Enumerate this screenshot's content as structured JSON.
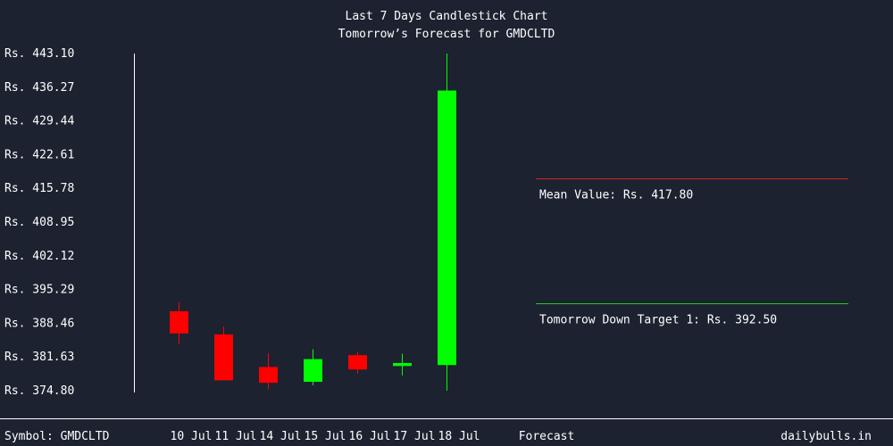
{
  "chart_data": {
    "type": "candlestick",
    "title": "Last 7 Days Candlestick Chart",
    "subtitle": "Tomorrow’s Forecast for GMDCLTD",
    "y_ticks": [
      "Rs. 443.10",
      "Rs. 436.27",
      "Rs. 429.44",
      "Rs. 422.61",
      "Rs. 415.78",
      "Rs. 408.95",
      "Rs. 402.12",
      "Rs. 395.29",
      "Rs. 388.46",
      "Rs. 381.63",
      "Rs. 374.80"
    ],
    "ylim": [
      374.8,
      443.1
    ],
    "categories": [
      "10 Jul",
      "11 Jul",
      "14 Jul",
      "15 Jul",
      "16 Jul",
      "17 Jul",
      "18 Jul"
    ],
    "candles": [
      {
        "date": "10 Jul",
        "open": 390.9,
        "close": 386.4,
        "high": 392.7,
        "low": 384.3,
        "direction": "down"
      },
      {
        "date": "11 Jul",
        "open": 386.2,
        "close": 376.9,
        "high": 387.8,
        "low": 376.9,
        "direction": "down"
      },
      {
        "date": "14 Jul",
        "open": 379.6,
        "close": 376.4,
        "high": 382.4,
        "low": 375.1,
        "direction": "down"
      },
      {
        "date": "15 Jul",
        "open": 376.6,
        "close": 381.2,
        "high": 383.2,
        "low": 375.9,
        "direction": "up"
      },
      {
        "date": "16 Jul",
        "open": 382.0,
        "close": 379.1,
        "high": 382.7,
        "low": 378.3,
        "direction": "down"
      },
      {
        "date": "17 Jul",
        "open": 379.8,
        "close": 380.4,
        "high": 382.3,
        "low": 377.9,
        "direction": "up"
      },
      {
        "date": "18 Jul",
        "open": 380.0,
        "close": 435.6,
        "high": 443.1,
        "low": 374.8,
        "direction": "up"
      }
    ],
    "forecast_label": "Forecast",
    "forecast_lines": [
      {
        "label": "Mean Value: Rs. 417.80",
        "value": 417.8,
        "color": "#cc2222"
      },
      {
        "label": "Tomorrow Down Target 1: Rs. 392.50",
        "value": 392.5,
        "color": "#22cc22"
      }
    ],
    "colors": {
      "up": "#00ff00",
      "down": "#ff0000",
      "background": "#1c2230",
      "text": "#ffffff"
    }
  },
  "footer": {
    "symbol": "Symbol: GMDCLTD",
    "brand": "dailybulls.in"
  }
}
